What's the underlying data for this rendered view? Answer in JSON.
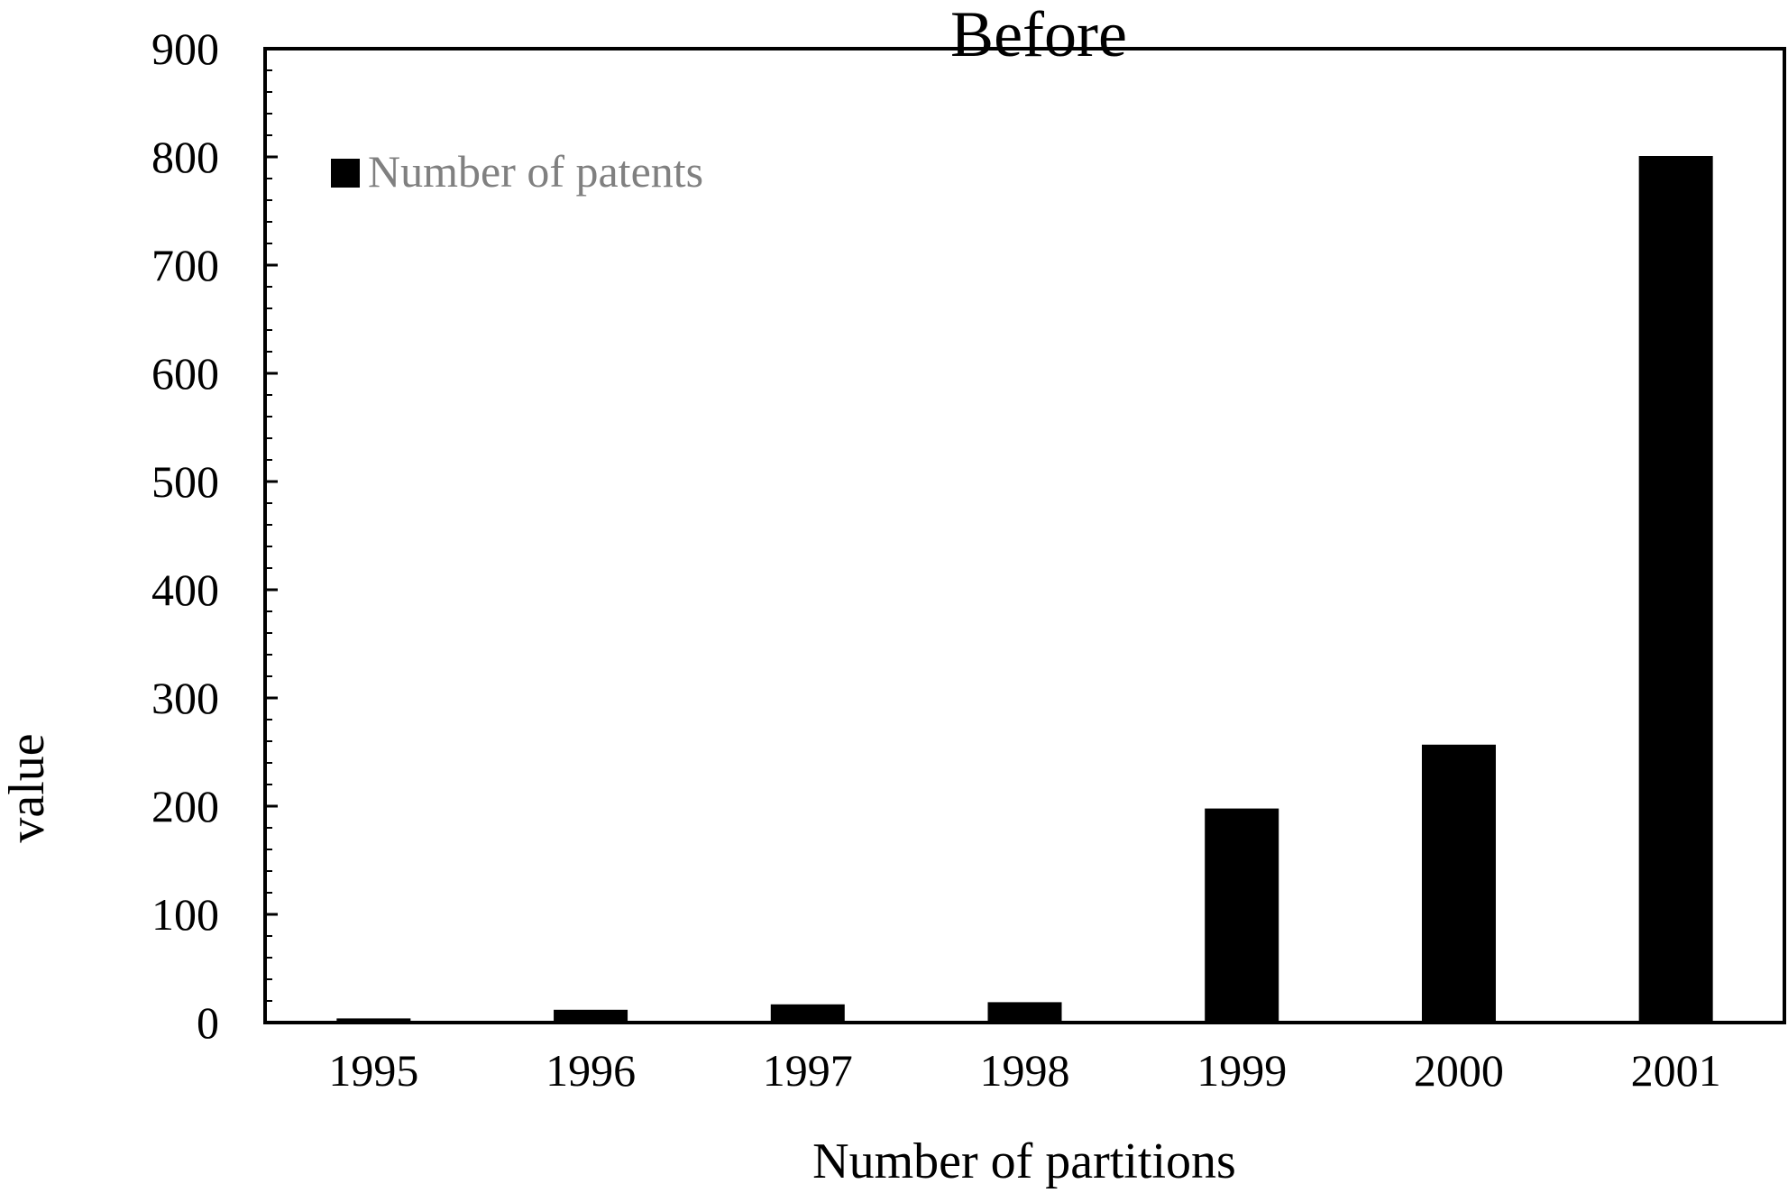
{
  "chart_data": {
    "type": "bar",
    "title": "Before",
    "xlabel": "Number of partitions",
    "ylabel": "value",
    "categories": [
      "1995",
      "1996",
      "1997",
      "1998",
      "1999",
      "2000",
      "2001"
    ],
    "series": [
      {
        "name": "Number of patents",
        "values": [
          3,
          11,
          16,
          18,
          197,
          256,
          800
        ],
        "color": "#000000"
      }
    ],
    "ylim": [
      0,
      900
    ],
    "yticks": [
      0,
      100,
      200,
      300,
      400,
      500,
      600,
      700,
      800,
      900
    ],
    "grid": false,
    "legend": {
      "position": "top-left"
    }
  }
}
